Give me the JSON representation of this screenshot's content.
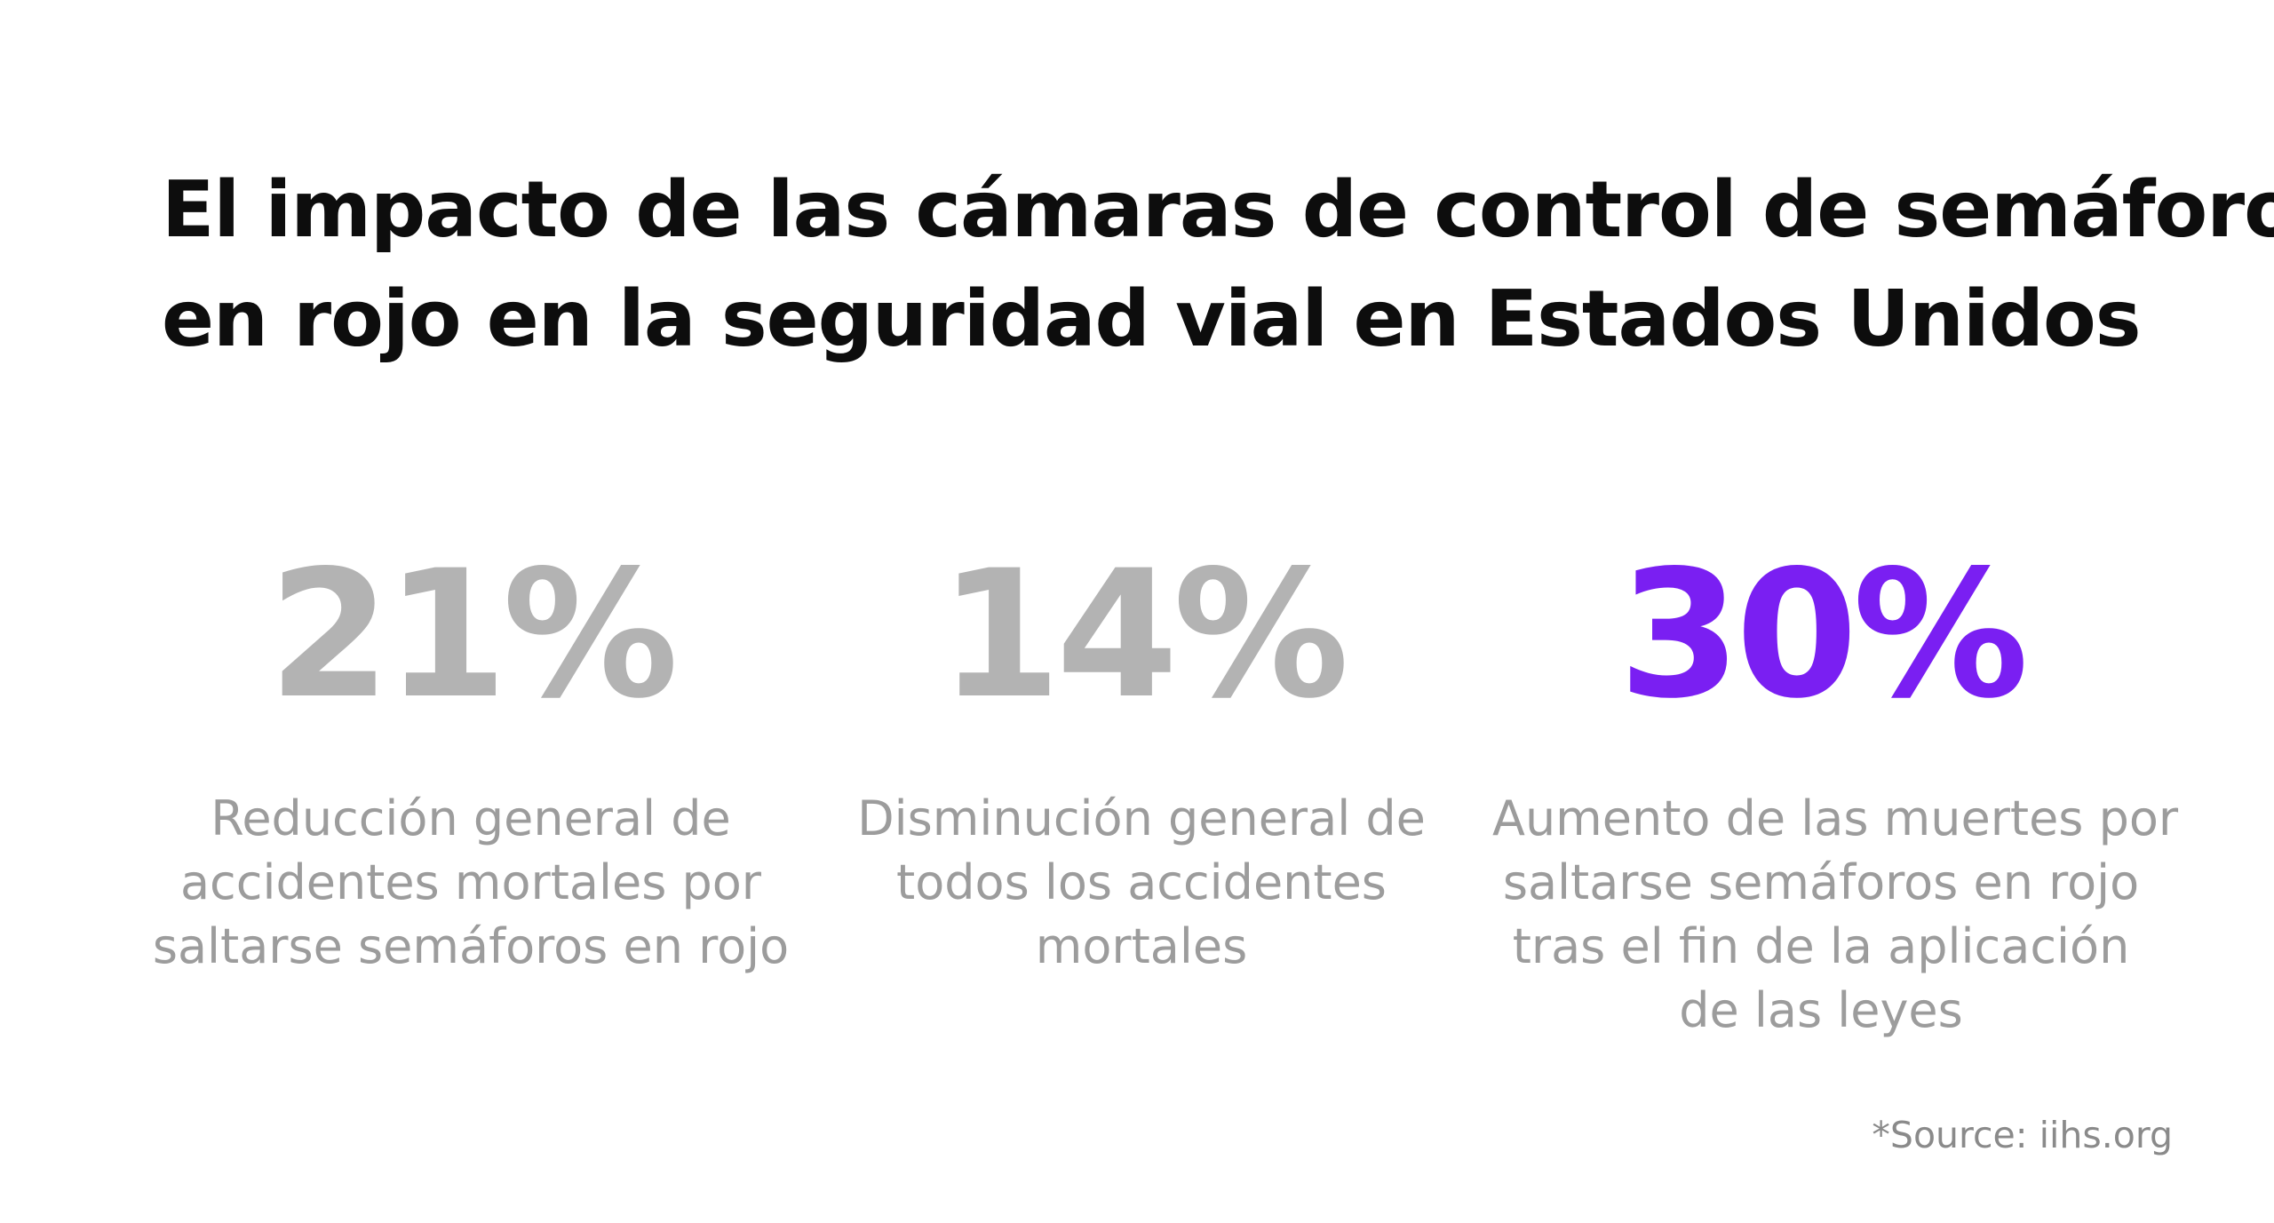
{
  "title": {
    "lines": [
      "El impacto de las cámaras de control de semáforos",
      "en rojo en la seguridad vial en Estados Unidos"
    ]
  },
  "stats": [
    {
      "value": "21%",
      "color": "#b3b3b3",
      "description_lines": [
        "Reducción general de",
        "accidentes mortales por",
        "saltarse semáforos en rojo"
      ]
    },
    {
      "value": "14%",
      "color": "#b3b3b3",
      "description_lines": [
        "Disminución general de",
        "todos los accidentes",
        "mortales"
      ]
    },
    {
      "value": "30%",
      "color": "#7a1ff2",
      "description_lines": [
        "Aumento de las muertes por",
        "saltarse semáforos en rojo",
        "tras el fin de la aplicación",
        "de las leyes"
      ]
    }
  ],
  "source": "*Source: iihs.org"
}
